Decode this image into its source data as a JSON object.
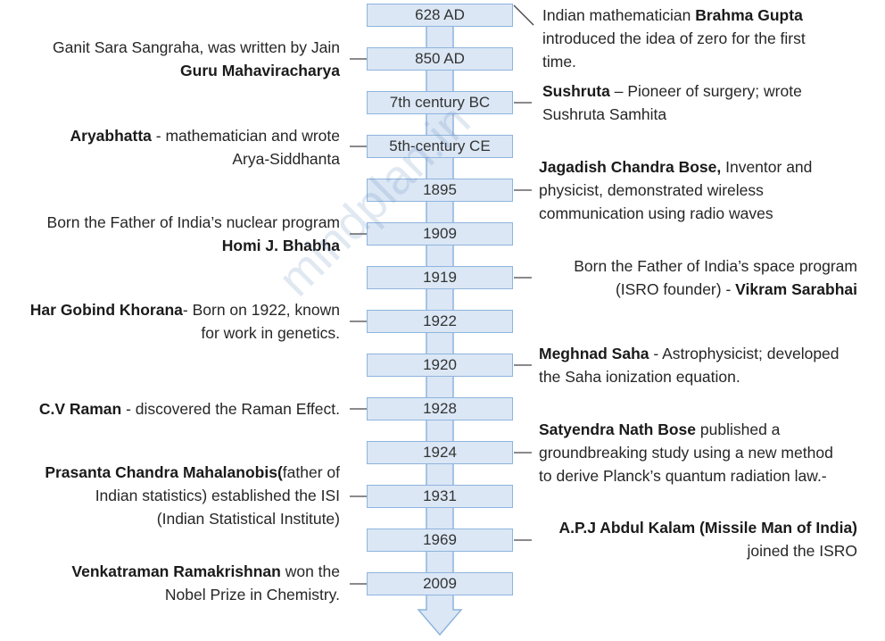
{
  "watermark": "mindplan.in",
  "colors": {
    "box_fill": "#dbe7f5",
    "box_border": "#8eb4dd",
    "arrow_fill": "#dbe7f5",
    "arrow_border": "#8eb4dd",
    "connector": "#444444"
  },
  "timeline": [
    {
      "year": "628 AD",
      "side": "right",
      "event": [
        {
          "t": "Indian mathematician "
        },
        {
          "t": "Brahma Gupta",
          "b": true
        },
        {
          "t": "\nintroduced the idea of zero for the first\ntime."
        }
      ]
    },
    {
      "year": "850 AD",
      "side": "left",
      "event": [
        {
          "t": "Ganit Sara Sangraha, was written by Jain\n"
        },
        {
          "t": "Guru Mahaviracharya",
          "b": true
        }
      ]
    },
    {
      "year": "7th century BC",
      "side": "right",
      "event": [
        {
          "t": "Sushruta",
          "b": true
        },
        {
          "t": " – Pioneer of surgery; wrote\nSushruta Samhita"
        }
      ]
    },
    {
      "year": "5th-century CE",
      "side": "left",
      "event": [
        {
          "t": "Aryabhatta",
          "b": true
        },
        {
          "t": " - mathematician and wrote\nArya-Siddhanta"
        }
      ]
    },
    {
      "year": "1895",
      "side": "right",
      "event": [
        {
          "t": "Jagadish Chandra Bose,",
          "b": true
        },
        {
          "t": " Inventor and\nphysicist, demonstrated wireless\ncommunication using radio waves"
        }
      ]
    },
    {
      "year": "1909",
      "side": "left",
      "event": [
        {
          "t": "Born the Father of India’s nuclear program\n"
        },
        {
          "t": "Homi J. Bhabha",
          "b": true
        }
      ]
    },
    {
      "year": "1919",
      "side": "right",
      "event": [
        {
          "t": "Born the Father of India’s space program\n(ISRO founder) - "
        },
        {
          "t": "Vikram Sarabhai",
          "b": true
        }
      ]
    },
    {
      "year": "1922",
      "side": "left",
      "event": [
        {
          "t": "Har Gobind Khorana",
          "b": true
        },
        {
          "t": "- Born on 1922, known\nfor work in genetics."
        }
      ]
    },
    {
      "year": "1920",
      "side": "right",
      "event": [
        {
          "t": "Meghnad Saha",
          "b": true
        },
        {
          "t": " - Astrophysicist; developed\nthe Saha ionization equation."
        }
      ]
    },
    {
      "year": "1928",
      "side": "left",
      "event": [
        {
          "t": "C.V Raman",
          "b": true
        },
        {
          "t": " - discovered the Raman Effect."
        }
      ]
    },
    {
      "year": "1924",
      "side": "right",
      "event": [
        {
          "t": "Satyendra Nath Bose",
          "b": true
        },
        {
          "t": " published a\ngroundbreaking study using a new method\nto derive Planck’s quantum radiation law.-"
        }
      ]
    },
    {
      "year": "1931",
      "side": "left",
      "event": [
        {
          "t": "Prasanta Chandra Mahalanobis(",
          "b": true
        },
        {
          "t": "father of\nIndian statistics) established the ISI\n(Indian Statistical Institute)"
        }
      ]
    },
    {
      "year": "1969",
      "side": "right",
      "event": [
        {
          "t": "A.P.J Abdul Kalam (Missile Man of India)",
          "b": true
        },
        {
          "t": "\njoined the ISRO"
        }
      ]
    },
    {
      "year": "2009",
      "side": "left",
      "event": [
        {
          "t": "Venkatraman Ramakrishnan",
          "b": true
        },
        {
          "t": " won the\nNobel Prize in Chemistry."
        }
      ]
    }
  ]
}
